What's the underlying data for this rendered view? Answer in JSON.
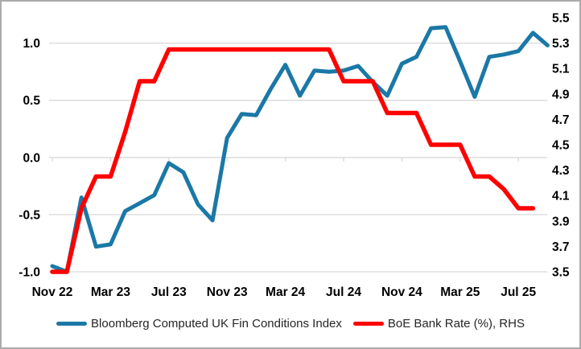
{
  "chart_data": {
    "type": "line",
    "title": "",
    "x_unit": "monthly",
    "x_start_month": "Nov 22",
    "x_tick_labels": [
      "Nov 22",
      "Mar 23",
      "Jul 23",
      "Nov 23",
      "Mar 24",
      "Jul 24",
      "Nov 24",
      "Mar 25",
      "Jul 25"
    ],
    "x_tick_every": 4,
    "grid": true,
    "legend_position": "bottom",
    "left_axis": {
      "tick_labels": [
        "1.0",
        "0.5",
        "0.0",
        "-0.5",
        "-1.0"
      ],
      "tick_values": [
        1.0,
        0.5,
        0.0,
        -0.5,
        -1.0
      ]
    },
    "right_axis": {
      "tick_labels": [
        "5.5",
        "5.3",
        "5.1",
        "4.9",
        "4.7",
        "4.5",
        "4.3",
        "4.1",
        "3.9",
        "3.7",
        "3.5"
      ],
      "tick_values": [
        5.5,
        5.3,
        5.1,
        4.9,
        4.7,
        4.5,
        4.3,
        4.1,
        3.9,
        3.7,
        3.5
      ],
      "min": 3.5,
      "max": 5.5
    },
    "axis_alignment": {
      "left_min": -1.0,
      "right_at_left_min": 3.5,
      "left_max": 1.0,
      "right_at_left_max": 5.3
    },
    "series": [
      {
        "name": "Bloomberg Computed UK Fin Conditions Index",
        "axis": "left",
        "color": "#1B78A6",
        "line_width": 5,
        "values": [
          -0.95,
          -1.0,
          -0.35,
          -0.78,
          -0.76,
          -0.47,
          -0.4,
          -0.33,
          -0.05,
          -0.13,
          -0.41,
          -0.55,
          0.17,
          0.38,
          0.37,
          0.6,
          0.81,
          0.54,
          0.76,
          0.75,
          0.76,
          0.8,
          0.66,
          0.54,
          0.82,
          0.88,
          1.13,
          1.14,
          0.84,
          0.53,
          0.88,
          0.9,
          0.93,
          1.09,
          0.98
        ]
      },
      {
        "name": "BoE Bank Rate (%), RHS",
        "axis": "right",
        "color": "#FF0000",
        "line_width": 5.5,
        "values": [
          3.5,
          3.5,
          4.0,
          4.25,
          4.25,
          4.6,
          5.0,
          5.0,
          5.25,
          5.25,
          5.25,
          5.25,
          5.25,
          5.25,
          5.25,
          5.25,
          5.25,
          5.25,
          5.25,
          5.25,
          5.0,
          5.0,
          5.0,
          4.75,
          4.75,
          4.75,
          4.5,
          4.5,
          4.5,
          4.25,
          4.25,
          4.15,
          4.0,
          4.0
        ]
      }
    ],
    "colors": {
      "gridline": "#D9D9D9",
      "axis_text": "#000000",
      "legend_text": "#262626"
    }
  }
}
